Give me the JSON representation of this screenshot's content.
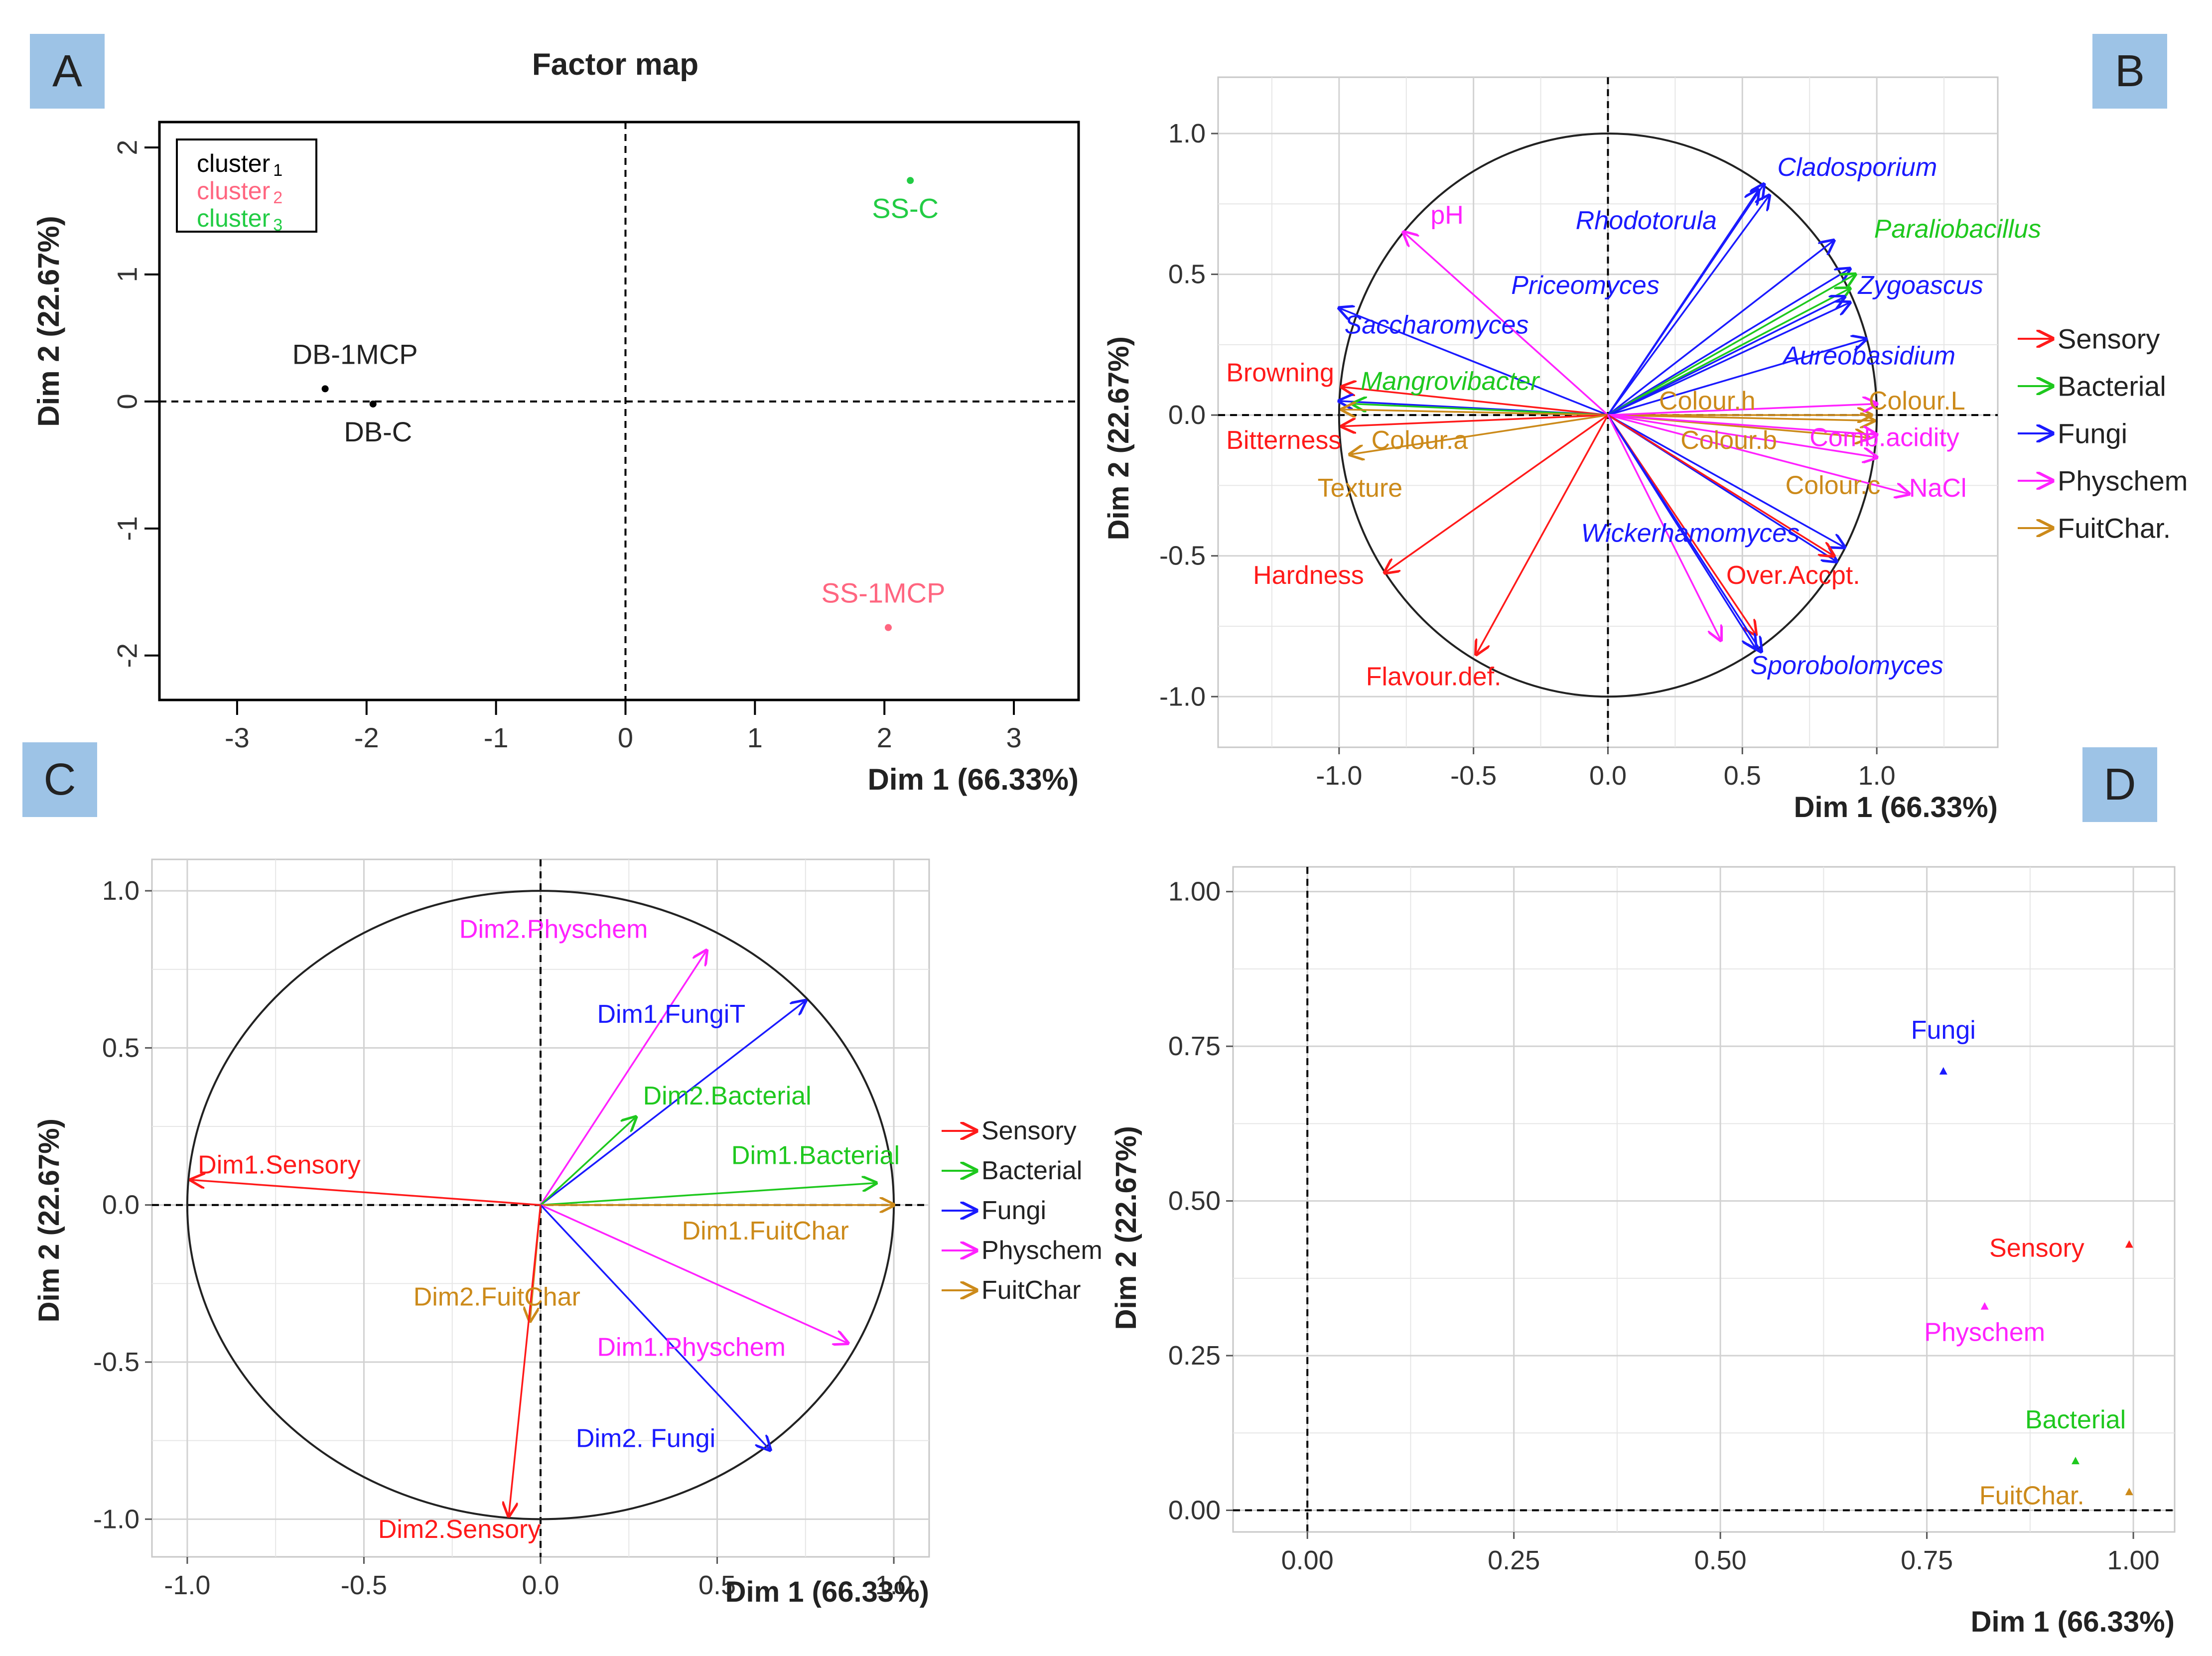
{
  "panel_labels": {
    "a": "A",
    "b": "B",
    "c": "C",
    "d": "D"
  },
  "chart_data": [
    {
      "panel": "A",
      "type": "scatter",
      "title": "Factor map",
      "xlabel": "Dim 1 (66.33%)",
      "ylabel": "Dim 2 (22.67%)",
      "xlim": [
        -3.6,
        3.5
      ],
      "ylim": [
        -2.35,
        2.2
      ],
      "xticks": [
        -3,
        -2,
        -1,
        0,
        1,
        2,
        3
      ],
      "yticks": [
        -2,
        -1,
        0,
        1,
        2
      ],
      "tick_labels_x": [
        "-3",
        "-2",
        "-1",
        "0",
        "1",
        "2",
        "3"
      ],
      "tick_labels_y": [
        "-2",
        "-1",
        "0",
        "1",
        "2"
      ],
      "legend": [
        {
          "name": "cluster",
          "sub": "1",
          "color": "#000000"
        },
        {
          "name": "cluster",
          "sub": "2",
          "color": "#ff6680"
        },
        {
          "name": "cluster",
          "sub": "3",
          "color": "#22cc44"
        }
      ],
      "points": [
        {
          "label": "DB-1MCP",
          "x": -2.32,
          "y": 0.1,
          "color": "#000000",
          "lpos": "above"
        },
        {
          "label": "DB-C",
          "x": -1.95,
          "y": -0.02,
          "color": "#000000",
          "lpos": "below"
        },
        {
          "label": "SS-C",
          "x": 2.2,
          "y": 1.74,
          "color": "#22cc44",
          "lpos": "below"
        },
        {
          "label": "SS-1MCP",
          "x": 2.03,
          "y": -1.78,
          "color": "#ff6680",
          "lpos": "above"
        }
      ],
      "grid": false
    },
    {
      "panel": "B",
      "type": "correlation-circle",
      "xlabel": "Dim 1 (66.33%)",
      "ylabel": "Dim 2 (22.67%)",
      "xlim": [
        -1.45,
        1.45
      ],
      "ylim": [
        -1.18,
        1.2
      ],
      "xticks": [
        -1.0,
        -0.5,
        0.0,
        0.5,
        1.0
      ],
      "yticks": [
        -1.0,
        -0.5,
        0.0,
        0.5,
        1.0
      ],
      "tick_labels_x": [
        "-1.0",
        "-0.5",
        "0.0",
        "0.5",
        "1.0"
      ],
      "tick_labels_y": [
        "-1.0",
        "-0.5",
        "0.0",
        "0.5",
        "1.0"
      ],
      "grid": true,
      "legend": [
        {
          "name": "Sensory",
          "color": "#ff1a1a"
        },
        {
          "name": "Bacterial",
          "color": "#1ec81e"
        },
        {
          "name": "Fungi",
          "color": "#1a1aff"
        },
        {
          "name": "Physchem",
          "color": "#ff22ff"
        },
        {
          "name": "FuitChar.",
          "color": "#cc8a1a"
        }
      ],
      "arrows": [
        {
          "x": 0.58,
          "y": 0.82,
          "color": "#1a1aff"
        },
        {
          "x": 0.56,
          "y": 0.8,
          "color": "#1a1aff"
        },
        {
          "x": 0.6,
          "y": 0.78,
          "color": "#1a1aff"
        },
        {
          "x": 0.84,
          "y": 0.62,
          "color": "#1a1aff"
        },
        {
          "x": 0.9,
          "y": 0.52,
          "color": "#1a1aff"
        },
        {
          "x": 0.92,
          "y": 0.5,
          "color": "#1ec81e"
        },
        {
          "x": 0.9,
          "y": 0.45,
          "color": "#1ec81e"
        },
        {
          "x": 0.88,
          "y": 0.42,
          "color": "#1a1aff"
        },
        {
          "x": 0.9,
          "y": 0.4,
          "color": "#1a1aff"
        },
        {
          "x": 0.96,
          "y": 0.27,
          "color": "#1a1aff"
        },
        {
          "x": -1.0,
          "y": 0.38,
          "color": "#1a1aff"
        },
        {
          "x": -0.76,
          "y": 0.65,
          "color": "#ff22ff"
        },
        {
          "x": -0.99,
          "y": 0.1,
          "color": "#ff1a1a"
        },
        {
          "x": -1.0,
          "y": 0.05,
          "color": "#1a1aff"
        },
        {
          "x": -0.95,
          "y": 0.04,
          "color": "#1ec81e"
        },
        {
          "x": -0.99,
          "y": 0.02,
          "color": "#cc8a1a"
        },
        {
          "x": -0.99,
          "y": -0.04,
          "color": "#ff1a1a"
        },
        {
          "x": -0.96,
          "y": -0.14,
          "color": "#cc8a1a"
        },
        {
          "x": -0.83,
          "y": -0.56,
          "color": "#ff1a1a"
        },
        {
          "x": -0.49,
          "y": -0.85,
          "color": "#ff1a1a"
        },
        {
          "x": 0.98,
          "y": 0.0,
          "color": "#cc8a1a"
        },
        {
          "x": 0.99,
          "y": -0.02,
          "color": "#cc8a1a"
        },
        {
          "x": 0.97,
          "y": -0.08,
          "color": "#cc8a1a"
        },
        {
          "x": 1.0,
          "y": 0.04,
          "color": "#ff22ff"
        },
        {
          "x": 1.0,
          "y": -0.07,
          "color": "#ff22ff"
        },
        {
          "x": 1.0,
          "y": -0.15,
          "color": "#ff22ff"
        },
        {
          "x": 1.12,
          "y": -0.28,
          "color": "#ff22ff"
        },
        {
          "x": 0.88,
          "y": -0.47,
          "color": "#1a1aff"
        },
        {
          "x": 0.85,
          "y": -0.52,
          "color": "#1a1aff"
        },
        {
          "x": 0.84,
          "y": -0.5,
          "color": "#ff1a1a"
        },
        {
          "x": 0.55,
          "y": -0.78,
          "color": "#ff1a1a"
        },
        {
          "x": 0.55,
          "y": -0.83,
          "color": "#1a1aff"
        },
        {
          "x": 0.57,
          "y": -0.84,
          "color": "#1a1aff"
        },
        {
          "x": 0.42,
          "y": -0.8,
          "color": "#ff22ff"
        }
      ],
      "labels": [
        {
          "text": "Cladosporium",
          "x": 0.63,
          "y": 0.85,
          "color": "#1a1aff",
          "italic": true,
          "anchor": "start"
        },
        {
          "text": "Rhodotorula",
          "x": -0.12,
          "y": 0.66,
          "color": "#1a1aff",
          "italic": true,
          "anchor": "start"
        },
        {
          "text": "Paraliobacillus",
          "x": 0.99,
          "y": 0.63,
          "color": "#1ec81e",
          "italic": true,
          "anchor": "start"
        },
        {
          "text": "pH",
          "x": -0.66,
          "y": 0.68,
          "color": "#ff22ff",
          "italic": false,
          "anchor": "start"
        },
        {
          "text": "Priceomyces",
          "x": -0.36,
          "y": 0.43,
          "color": "#1a1aff",
          "italic": true,
          "anchor": "start"
        },
        {
          "text": "Zygoascus",
          "x": 0.93,
          "y": 0.43,
          "color": "#1a1aff",
          "italic": true,
          "anchor": "start"
        },
        {
          "text": "Saccharomyces",
          "x": -0.98,
          "y": 0.29,
          "color": "#1a1aff",
          "italic": true,
          "anchor": "start"
        },
        {
          "text": "Aureobasidium",
          "x": 0.65,
          "y": 0.18,
          "color": "#1a1aff",
          "italic": true,
          "anchor": "start"
        },
        {
          "text": "Browning",
          "x": -1.42,
          "y": 0.12,
          "color": "#ff1a1a",
          "italic": false,
          "anchor": "start"
        },
        {
          "text": "Mangrovibacter",
          "x": -0.92,
          "y": 0.09,
          "color": "#1ec81e",
          "italic": true,
          "anchor": "start"
        },
        {
          "text": "Colour.h",
          "x": 0.19,
          "y": 0.02,
          "color": "#cc8a1a",
          "italic": false,
          "anchor": "start"
        },
        {
          "text": "Colour.L",
          "x": 0.97,
          "y": 0.02,
          "color": "#cc8a1a",
          "italic": false,
          "anchor": "start"
        },
        {
          "text": "Bitterness",
          "x": -1.42,
          "y": -0.12,
          "color": "#ff1a1a",
          "italic": false,
          "anchor": "start"
        },
        {
          "text": "Colour.a",
          "x": -0.88,
          "y": -0.12,
          "color": "#cc8a1a",
          "italic": false,
          "anchor": "start"
        },
        {
          "text": "Colour.b",
          "x": 0.27,
          "y": -0.12,
          "color": "#cc8a1a",
          "italic": false,
          "anchor": "start"
        },
        {
          "text": "Comb.acidity",
          "x": 0.75,
          "y": -0.11,
          "color": "#ff22ff",
          "italic": false,
          "anchor": "start"
        },
        {
          "text": "Texture",
          "x": -1.08,
          "y": -0.29,
          "color": "#cc8a1a",
          "italic": false,
          "anchor": "start"
        },
        {
          "text": "Colour.c",
          "x": 0.66,
          "y": -0.28,
          "color": "#cc8a1a",
          "italic": false,
          "anchor": "start"
        },
        {
          "text": "NaCl",
          "x": 1.12,
          "y": -0.29,
          "color": "#ff22ff",
          "italic": false,
          "anchor": "start"
        },
        {
          "text": "Wickerhamomyces",
          "x": -0.1,
          "y": -0.45,
          "color": "#1a1aff",
          "italic": true,
          "anchor": "start"
        },
        {
          "text": "Hardness",
          "x": -1.32,
          "y": -0.6,
          "color": "#ff1a1a",
          "italic": false,
          "anchor": "start"
        },
        {
          "text": "Over.Accpt.",
          "x": 0.44,
          "y": -0.6,
          "color": "#ff1a1a",
          "italic": false,
          "anchor": "start"
        },
        {
          "text": "Sporobolomyces",
          "x": 0.53,
          "y": -0.92,
          "color": "#1a1aff",
          "italic": true,
          "anchor": "start"
        },
        {
          "text": "Flavour.def.",
          "x": -0.9,
          "y": -0.96,
          "color": "#ff1a1a",
          "italic": false,
          "anchor": "start"
        }
      ]
    },
    {
      "panel": "C",
      "type": "correlation-circle",
      "xlabel": "Dim 1 (66.33%)",
      "ylabel": "Dim 2 (22.67%)",
      "xlim": [
        -1.1,
        1.1
      ],
      "ylim": [
        -1.12,
        1.1
      ],
      "xticks": [
        -1.0,
        -0.5,
        0.0,
        0.5,
        1.0
      ],
      "yticks": [
        -1.0,
        -0.5,
        0.0,
        0.5,
        1.0
      ],
      "tick_labels_x": [
        "-1.0",
        "-0.5",
        "0.0",
        "0.5",
        "1.0"
      ],
      "tick_labels_y": [
        "-1.0",
        "-0.5",
        "0.0",
        "0.5",
        "1.0"
      ],
      "grid": true,
      "legend": [
        {
          "name": "Sensory",
          "color": "#ff1a1a"
        },
        {
          "name": "Bacterial",
          "color": "#1ec81e"
        },
        {
          "name": "Fungi",
          "color": "#1a1aff"
        },
        {
          "name": "Physchem",
          "color": "#ff22ff"
        },
        {
          "name": "FuitChar",
          "color": "#cc8a1a"
        }
      ],
      "arrows": [
        {
          "x": -0.99,
          "y": 0.08,
          "color": "#ff1a1a"
        },
        {
          "x": 0.47,
          "y": 0.81,
          "color": "#ff22ff"
        },
        {
          "x": 0.75,
          "y": 0.65,
          "color": "#1a1aff"
        },
        {
          "x": 0.27,
          "y": 0.28,
          "color": "#1ec81e"
        },
        {
          "x": 0.95,
          "y": 0.07,
          "color": "#1ec81e"
        },
        {
          "x": 1.0,
          "y": 0.0,
          "color": "#cc8a1a"
        },
        {
          "x": -0.03,
          "y": -0.37,
          "color": "#cc8a1a"
        },
        {
          "x": 0.87,
          "y": -0.44,
          "color": "#ff22ff"
        },
        {
          "x": 0.65,
          "y": -0.78,
          "color": "#1a1aff"
        },
        {
          "x": -0.09,
          "y": -0.99,
          "color": "#ff1a1a"
        }
      ],
      "labels": [
        {
          "text": "Dim2.Physchem",
          "x": -0.23,
          "y": 0.85,
          "color": "#ff22ff",
          "anchor": "start"
        },
        {
          "text": "Dim1.FungiT",
          "x": 0.16,
          "y": 0.58,
          "color": "#1a1aff",
          "anchor": "start"
        },
        {
          "text": "Dim2.Bacterial",
          "x": 0.29,
          "y": 0.32,
          "color": "#1ec81e",
          "anchor": "start"
        },
        {
          "text": "Dim1.Sensory",
          "x": -0.97,
          "y": 0.1,
          "color": "#ff1a1a",
          "anchor": "start"
        },
        {
          "text": "Dim1.Bacterial",
          "x": 0.54,
          "y": 0.13,
          "color": "#1ec81e",
          "anchor": "start"
        },
        {
          "text": "Dim1.FuitChar",
          "x": 0.4,
          "y": -0.11,
          "color": "#cc8a1a",
          "anchor": "start"
        },
        {
          "text": "Dim2.FuitChar",
          "x": -0.36,
          "y": -0.32,
          "color": "#cc8a1a",
          "anchor": "start"
        },
        {
          "text": "Dim1.Physchem",
          "x": 0.16,
          "y": -0.48,
          "color": "#ff22ff",
          "anchor": "start"
        },
        {
          "text": "Dim2. Fungi",
          "x": 0.1,
          "y": -0.77,
          "color": "#1a1aff",
          "anchor": "start"
        },
        {
          "text": "Dim2.Sensory",
          "x": -0.46,
          "y": -1.06,
          "color": "#ff1a1a",
          "anchor": "start"
        }
      ]
    },
    {
      "panel": "D",
      "type": "scatter",
      "xlabel": "Dim 1 (66.33%)",
      "ylabel": "Dim 2 (22.67%)",
      "xlim": [
        -0.09,
        1.05
      ],
      "ylim": [
        -0.035,
        1.04
      ],
      "xticks": [
        0.0,
        0.25,
        0.5,
        0.75,
        1.0
      ],
      "yticks": [
        0.0,
        0.25,
        0.5,
        0.75,
        1.0
      ],
      "tick_labels_x": [
        "0.00",
        "0.25",
        "0.50",
        "0.75",
        "1.00"
      ],
      "tick_labels_y": [
        "0.00",
        "0.25",
        "0.50",
        "0.75",
        "1.00"
      ],
      "grid": true,
      "points": [
        {
          "label": "Fungi",
          "x": 0.77,
          "y": 0.71,
          "color": "#1a1aff",
          "lpos": "above"
        },
        {
          "label": "Sensory",
          "x": 0.995,
          "y": 0.43,
          "color": "#ff1a1a",
          "lpos": "left"
        },
        {
          "label": "Physchem",
          "x": 0.82,
          "y": 0.33,
          "color": "#ff22ff",
          "lpos": "below"
        },
        {
          "label": "Bacterial",
          "x": 0.93,
          "y": 0.08,
          "color": "#1ec81e",
          "lpos": "above"
        },
        {
          "label": "FuitChar.",
          "x": 0.995,
          "y": 0.03,
          "color": "#cc8a1a",
          "lpos": "left"
        }
      ]
    }
  ]
}
